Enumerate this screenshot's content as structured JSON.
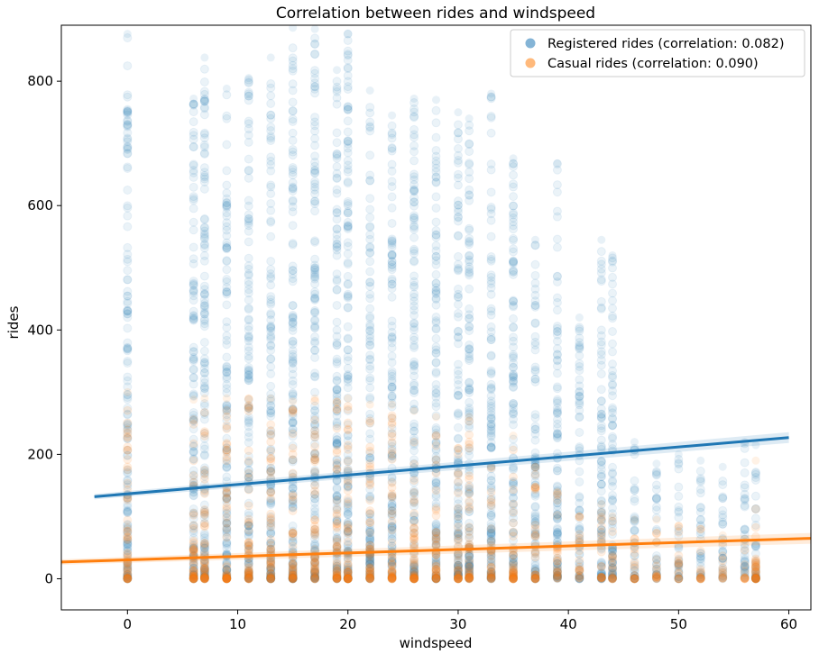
{
  "chart_data": {
    "type": "scatter",
    "title": "Correlation between rides and windspeed",
    "xlabel": "windspeed",
    "ylabel": "rides",
    "xlim": [
      -6,
      62
    ],
    "ylim": [
      -50,
      890
    ],
    "x_ticks": [
      0,
      10,
      20,
      30,
      40,
      50,
      60
    ],
    "y_ticks": [
      0,
      200,
      400,
      600,
      800
    ],
    "grid": false,
    "legend_position": "top-right",
    "windspeed_values": [
      0,
      6,
      7,
      9,
      11,
      13,
      15,
      17,
      19,
      20,
      22,
      24,
      26,
      28,
      30,
      31,
      33,
      35,
      37,
      39,
      41,
      43,
      44,
      46,
      48,
      50,
      52,
      54,
      56,
      57
    ],
    "series": [
      {
        "name": "Registered rides (correlation: 0.082)",
        "color": "#1f77b4",
        "max_by_windspeed": [
          876,
          772,
          838,
          788,
          805,
          838,
          886,
          884,
          818,
          876,
          785,
          745,
          772,
          770,
          750,
          740,
          780,
          676,
          545,
          668,
          420,
          545,
          520,
          220,
          185,
          200,
          190,
          180,
          220,
          215
        ],
        "trend": {
          "x": [
            -3,
            60
          ],
          "y": [
            132,
            227
          ]
        }
      },
      {
        "name": "Casual rides (correlation: 0.090)",
        "color": "#ff7f0e",
        "max_by_windspeed": [
          300,
          288,
          290,
          290,
          290,
          290,
          285,
          290,
          285,
          290,
          280,
          280,
          270,
          260,
          210,
          260,
          180,
          230,
          180,
          140,
          100,
          120,
          100,
          95,
          95,
          85,
          80,
          70,
          60,
          190
        ],
        "trend": {
          "x": [
            -6,
            62
          ],
          "y": [
            27,
            65
          ]
        }
      }
    ]
  }
}
